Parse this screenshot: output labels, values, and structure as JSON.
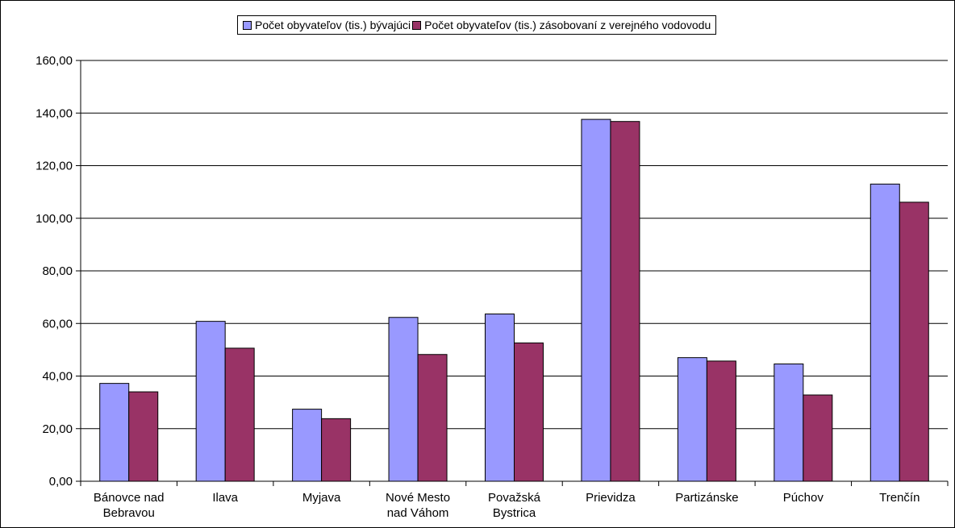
{
  "chart_data": {
    "type": "bar",
    "categories": [
      [
        "Bánovce nad",
        "Bebravou"
      ],
      [
        "Ilava"
      ],
      [
        "Myjava"
      ],
      [
        "Nové Mesto",
        "nad Váhom"
      ],
      [
        "Považská",
        "Bystrica"
      ],
      [
        "Prievidza"
      ],
      [
        "Partizánske"
      ],
      [
        "Púchov"
      ],
      [
        "Trenčín"
      ]
    ],
    "series": [
      {
        "name": "Počet obyvateľov (tis.) bývajúci",
        "color": "#9999ff",
        "values": [
          37.2,
          60.8,
          27.4,
          62.3,
          63.6,
          137.6,
          47.0,
          44.6,
          113.0
        ]
      },
      {
        "name": "Počet obyvateľov (tis.) zásobovaní z verejného vodovodu",
        "color": "#993366",
        "values": [
          34.0,
          50.6,
          23.8,
          48.2,
          52.6,
          136.8,
          45.7,
          32.8,
          106.1
        ]
      }
    ],
    "ylim": [
      0,
      160
    ],
    "ytick_step": 20,
    "ytick_labels": [
      "0,00",
      "20,00",
      "40,00",
      "60,00",
      "80,00",
      "100,00",
      "120,00",
      "140,00",
      "160,00"
    ],
    "grid": true,
    "legend": "top-center"
  }
}
